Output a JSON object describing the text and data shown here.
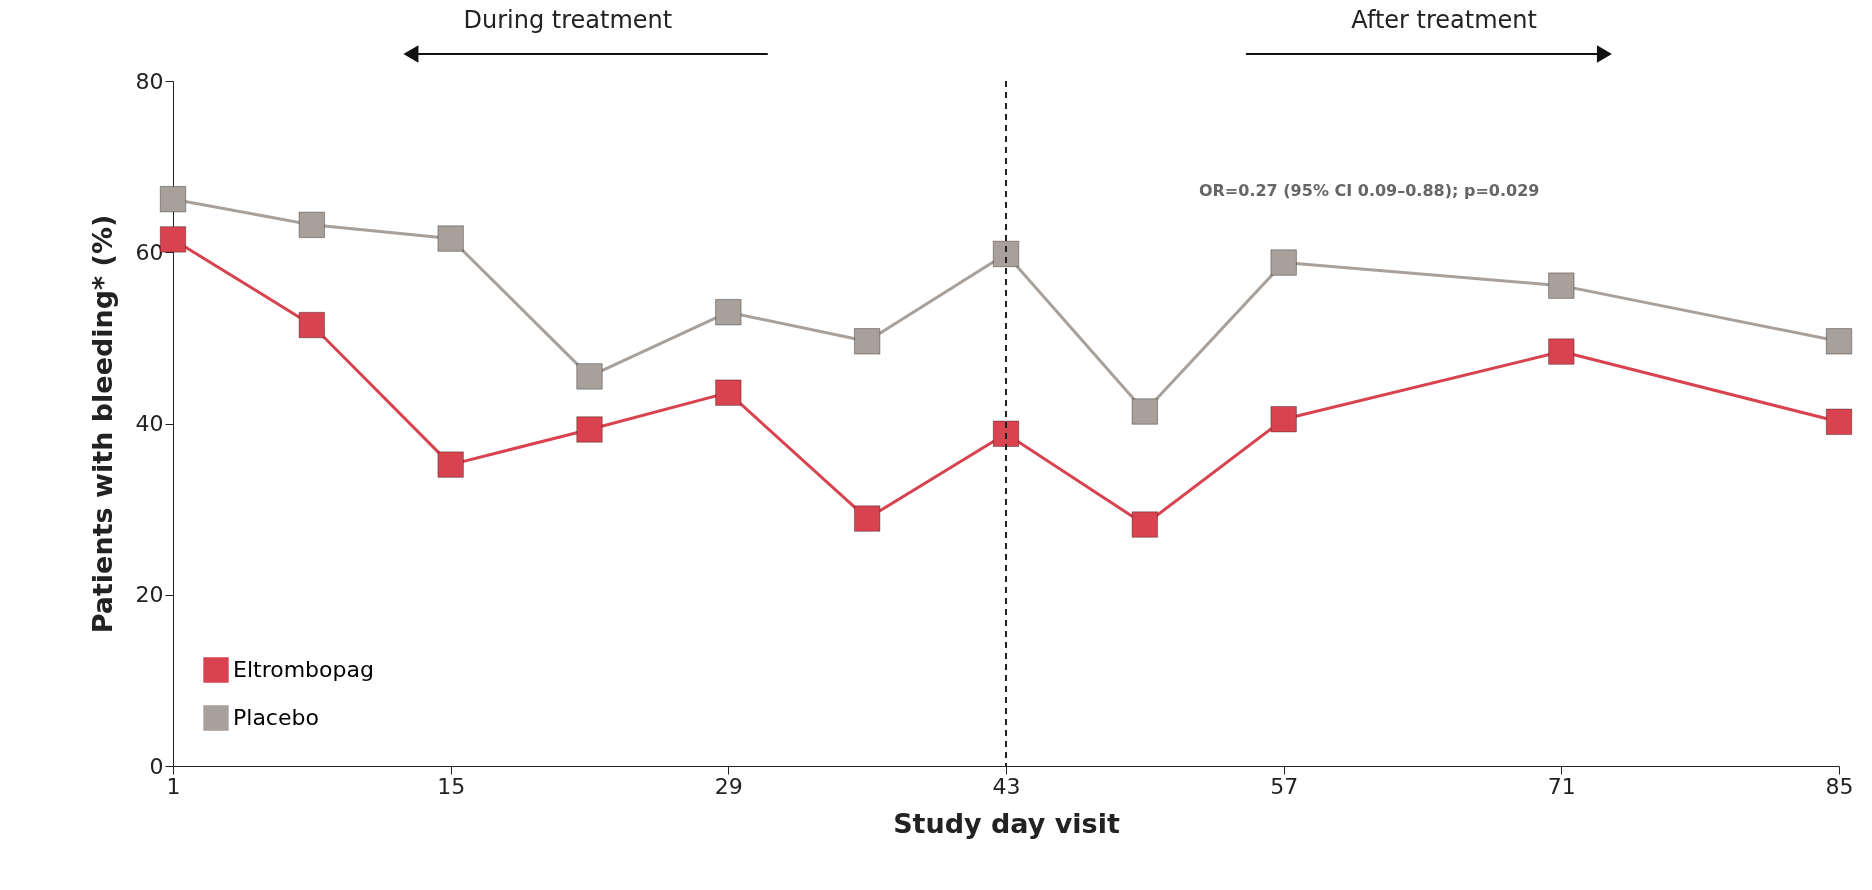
{
  "chart_data": {
    "type": "line",
    "xlabel": "Study day visit",
    "ylabel": "Patients with bleeding* (%)",
    "x": [
      1,
      8,
      15,
      22,
      29,
      36,
      43,
      50,
      57,
      71,
      85
    ],
    "series": [
      {
        "name": "Eltrombopag",
        "color": "#d9434f",
        "values": [
          61.5,
          51.5,
          35.2,
          39.3,
          43.6,
          28.9,
          38.8,
          28.2,
          40.5,
          48.4,
          40.2
        ]
      },
      {
        "name": "Placebo",
        "color": "#a8a09a",
        "values": [
          66.2,
          63.2,
          61.6,
          45.5,
          53.0,
          49.6,
          59.8,
          41.4,
          58.8,
          56.1,
          49.6
        ]
      }
    ],
    "xlim": [
      1,
      85
    ],
    "xticks": [
      1,
      15,
      29,
      43,
      57,
      71,
      85
    ],
    "ylim": [
      0,
      80
    ],
    "yticks": [
      0,
      20,
      40,
      60,
      80
    ],
    "ref_lines": [
      {
        "axis": "x",
        "value": 43,
        "color": "#222222",
        "line_style": "dashed"
      }
    ],
    "annotations": [
      "During treatment",
      "After treatment",
      "OR=0.27 (95% CI 0.09–0.88); p=0.029"
    ],
    "marker": "square",
    "line_style": "solid",
    "grid": false,
    "legend": "bottom left"
  }
}
